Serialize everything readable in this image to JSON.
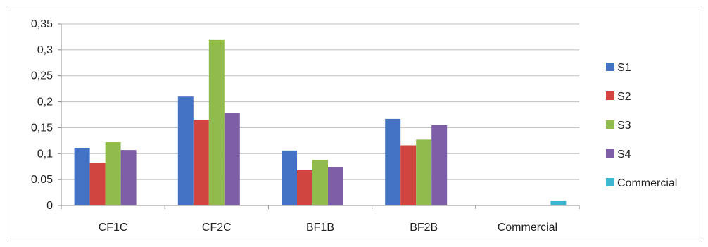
{
  "chart_data": {
    "type": "bar",
    "title": "",
    "xlabel": "",
    "ylabel": "",
    "categories": [
      "CF1C",
      "CF2C",
      "BF1B",
      "BF2B",
      "Commercial"
    ],
    "ylim": [
      0,
      0.35
    ],
    "yticks": [
      0,
      0.05,
      0.1,
      0.15,
      0.2,
      0.25,
      0.3,
      0.35
    ],
    "ytick_labels": [
      "0",
      "0,05",
      "0,1",
      "0,15",
      "0,2",
      "0,25",
      "0,3",
      "0,35"
    ],
    "grid": true,
    "legend_position": "right",
    "series": [
      {
        "name": "S1",
        "color": "#4472c4",
        "values": [
          0.111,
          0.21,
          0.106,
          0.167,
          0
        ]
      },
      {
        "name": "S2",
        "color": "#d0453f",
        "values": [
          0.082,
          0.165,
          0.068,
          0.116,
          0
        ]
      },
      {
        "name": "S3",
        "color": "#92bb4d",
        "values": [
          0.122,
          0.319,
          0.088,
          0.127,
          0
        ]
      },
      {
        "name": "S4",
        "color": "#7e5fa7",
        "values": [
          0.107,
          0.179,
          0.074,
          0.155,
          0
        ]
      },
      {
        "name": "Commercial",
        "color": "#3fb6d1",
        "values": [
          0,
          0,
          0,
          0,
          0.009
        ]
      }
    ]
  }
}
